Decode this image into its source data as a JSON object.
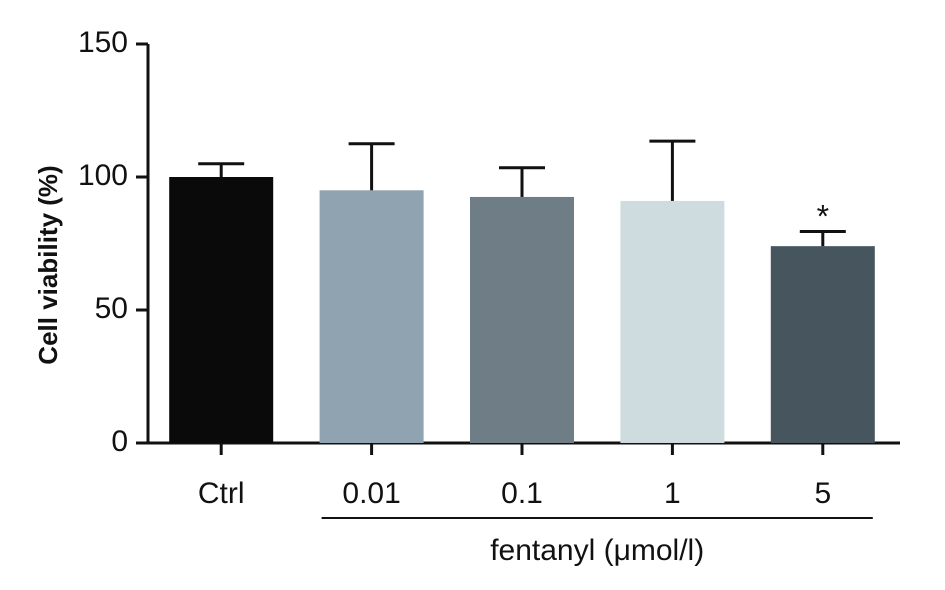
{
  "chart_data": {
    "type": "bar",
    "title": "",
    "ylabel": "Cell viability (%)",
    "xlabel": "",
    "ylim": [
      0,
      150
    ],
    "yticks": [
      "0",
      "50",
      "100",
      "150"
    ],
    "categories": [
      "Ctrl",
      "0.01",
      "0.1",
      "1",
      "5"
    ],
    "values": [
      100,
      95,
      92.5,
      91,
      74
    ],
    "errors": [
      5,
      17.5,
      11,
      22.5,
      5.5
    ],
    "bar_colors": [
      "#0a0a0a",
      "#90a3b1",
      "#6e7d86",
      "#cfdcdf",
      "#46555e"
    ],
    "significance": [
      "",
      "",
      "",
      "",
      "*"
    ],
    "group_bracket": {
      "label": "fentanyl (μmol/l)",
      "from_category": "0.01",
      "to_category": "5"
    },
    "grid": false,
    "legend": "none"
  }
}
